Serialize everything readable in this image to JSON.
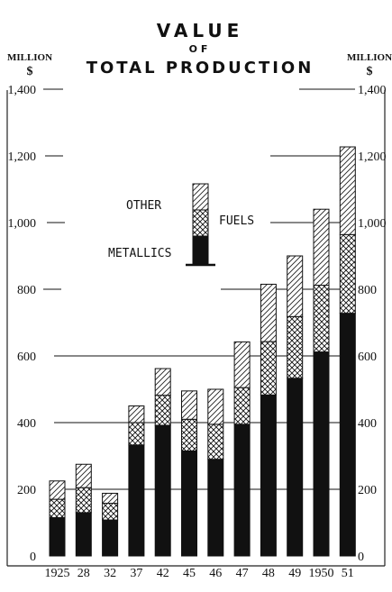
{
  "chart_data": {
    "type": "bar",
    "stacked": true,
    "title_lines": [
      "VALUE",
      "OF",
      "TOTAL PRODUCTION"
    ],
    "y_unit_left": [
      "MILLION",
      "$"
    ],
    "y_unit_right": [
      "MILLION",
      "$"
    ],
    "categories": [
      "1925",
      "28",
      "32",
      "37",
      "42",
      "45",
      "46",
      "47",
      "48",
      "49",
      "1950",
      "51"
    ],
    "series": [
      {
        "name": "METALLICS",
        "values": [
          115,
          130,
          108,
          333,
          392,
          315,
          290,
          395,
          483,
          533,
          612,
          728
        ]
      },
      {
        "name": "FUELS",
        "values": [
          55,
          75,
          50,
          67,
          90,
          95,
          105,
          110,
          160,
          185,
          200,
          236
        ]
      },
      {
        "name": "OTHER",
        "values": [
          55,
          70,
          30,
          50,
          80,
          85,
          105,
          137,
          172,
          182,
          228,
          263
        ]
      }
    ],
    "ylim": [
      0,
      1400
    ],
    "yticks_left": [
      "0",
      "200",
      "400",
      "600",
      "800",
      "1,000",
      "1,200",
      "1,400"
    ],
    "yticks_right": [
      "0",
      "200",
      "400",
      "600",
      "800",
      "1,000",
      "1,200",
      "1,400"
    ],
    "ytick_values": [
      0,
      200,
      400,
      600,
      800,
      1000,
      1200,
      1400
    ],
    "legend": {
      "placement": "upper-left",
      "labels": [
        "OTHER",
        "FUELS",
        "METALLICS"
      ]
    },
    "colors": {
      "metallics": "#111111",
      "fuels": "#111111",
      "other": "#333333",
      "grid": "#111111"
    }
  }
}
